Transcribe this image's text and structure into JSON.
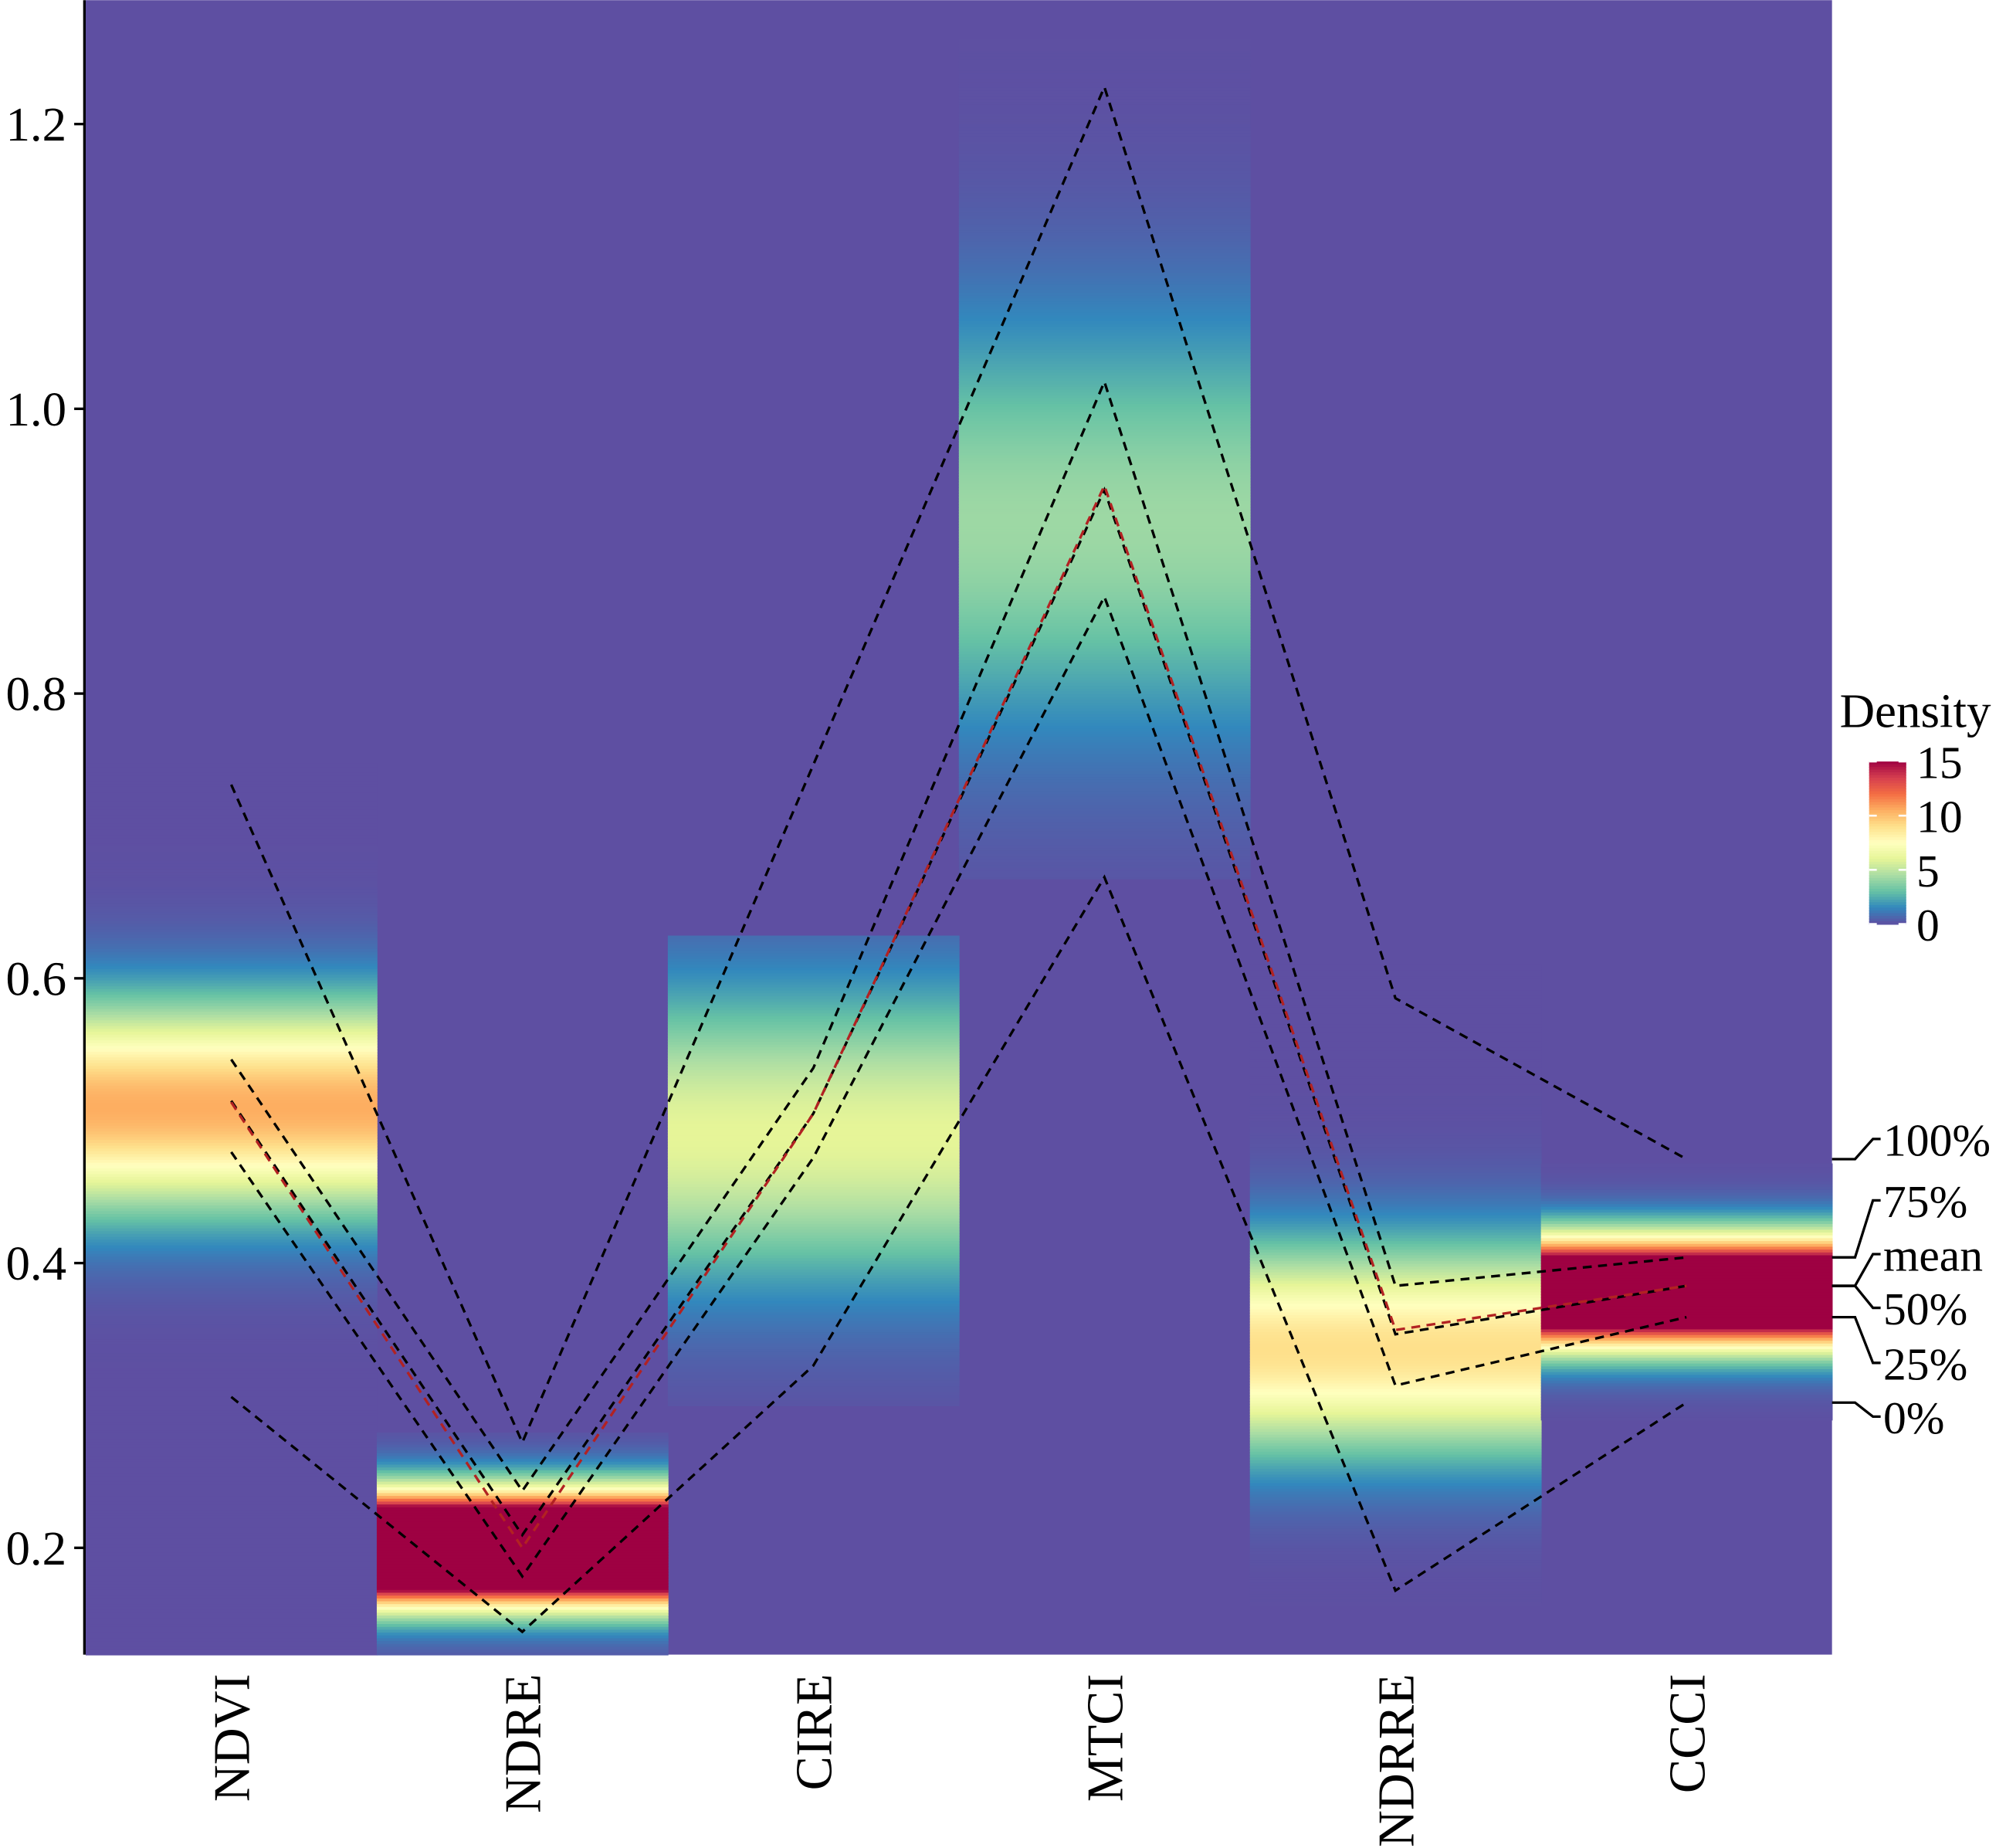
{
  "chart_data": {
    "type": "heatmap",
    "title": "",
    "xlabel": "",
    "ylabel": "",
    "categories": [
      "NDVI",
      "NDRE",
      "CIRE",
      "MTCI",
      "NDRRE",
      "CCCI"
    ],
    "ylim": [
      0.125,
      1.287
    ],
    "y_ticks": [
      "0.2",
      "0.4",
      "0.6",
      "0.8",
      "1.0",
      "1.2"
    ],
    "grid": false,
    "colormap": [
      "#5E4FA2",
      "#3288BD",
      "#66C2A5",
      "#ABDDA4",
      "#E6F598",
      "#FFFFBF",
      "#FEE08B",
      "#FDAE61",
      "#F46D43",
      "#D53E4F",
      "#9E0142"
    ],
    "colorbar": {
      "title": "Density",
      "ticks": [
        "0",
        "5",
        "10",
        "15"
      ],
      "range": [
        0,
        15
      ]
    },
    "density": [
      {
        "category": "NDVI",
        "range": [
          0.125,
          0.75
        ],
        "center": 0.51,
        "sd": 0.05,
        "peak": 10.5
      },
      {
        "category": "NDRE",
        "range": [
          0.125,
          0.28
        ],
        "center": 0.2,
        "sd": 0.025,
        "peak": 30
      },
      {
        "category": "CIRE",
        "range": [
          0.3,
          0.63
        ],
        "center": 0.49,
        "sd": 0.07,
        "peak": 6
      },
      {
        "category": "MTCI",
        "range": [
          0.67,
          1.26
        ],
        "center": 0.92,
        "sd": 0.1,
        "peak": 4.2
      },
      {
        "category": "NDRRE",
        "range": [
          0.16,
          0.61
        ],
        "center": 0.34,
        "sd": 0.05,
        "peak": 9
      },
      {
        "category": "CCCI",
        "range": [
          0.29,
          0.47
        ],
        "center": 0.38,
        "sd": 0.025,
        "peak": 25
      }
    ],
    "series": [
      {
        "name": "100%",
        "values": [
          0.736,
          0.274,
          0.75,
          1.226,
          0.586,
          0.473
        ],
        "color": "#000000"
      },
      {
        "name": "75%",
        "values": [
          0.543,
          0.24,
          0.537,
          1.019,
          0.384,
          0.404
        ],
        "color": "#000000"
      },
      {
        "name": "50%",
        "values": [
          0.514,
          0.209,
          0.505,
          0.943,
          0.35,
          0.384
        ],
        "color": "#000000"
      },
      {
        "name": "mean",
        "values": [
          0.513,
          0.2,
          0.505,
          0.946,
          0.353,
          0.384
        ],
        "color": "#B22222"
      },
      {
        "name": "25%",
        "values": [
          0.478,
          0.18,
          0.474,
          0.868,
          0.314,
          0.362
        ],
        "color": "#000000"
      },
      {
        "name": "0%",
        "values": [
          0.306,
          0.141,
          0.328,
          0.671,
          0.17,
          0.302
        ],
        "color": "#000000"
      }
    ],
    "line_labels": [
      "100%",
      "75%",
      "mean",
      "50%",
      "25%",
      "0%"
    ]
  }
}
